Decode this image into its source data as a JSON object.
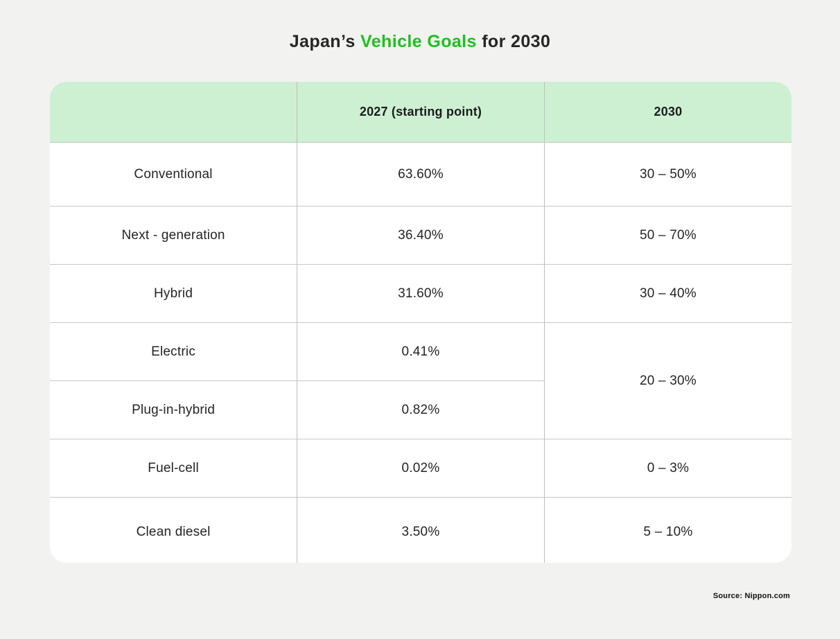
{
  "title": {
    "prefix": "Japan’s ",
    "highlight": "Vehicle Goals",
    "suffix": " for 2030"
  },
  "table": {
    "header": {
      "col_category": "",
      "col_2027": "2027 (starting point)",
      "col_2030": "2030"
    },
    "rows": [
      {
        "category": "Conventional",
        "y2027": "63.60%",
        "y2030": "30 – 50%"
      },
      {
        "category": "Next - generation",
        "y2027": "36.40%",
        "y2030": "50 – 70%"
      },
      {
        "category": "Hybrid",
        "y2027": "31.60%",
        "y2030": "30 – 40%"
      },
      {
        "category": "Electric",
        "y2027": "0.41%",
        "y2030": "20 – 30%"
      },
      {
        "category": "Plug-in-hybrid",
        "y2027": "0.82%",
        "y2030": "20 – 30% (merged with Electric row)"
      },
      {
        "category": "Fuel-cell",
        "y2027": "0.02%",
        "y2030": "0 – 3%"
      },
      {
        "category": "Clean diesel",
        "y2027": "3.50%",
        "y2030": "5 – 10%"
      }
    ]
  },
  "source": "Source: Nippon.com",
  "colors": {
    "page_background": "#f2f2f1",
    "card_background": "#ffffff",
    "header_background": "#cdf0d2",
    "accent_green": "#1bc21b",
    "grid_line": "#c6c6c6",
    "text": "#242424"
  },
  "chart_data": {
    "type": "table",
    "title": "Japan’s Vehicle Goals for 2030",
    "columns": [
      "",
      "2027 (starting point)",
      "2030"
    ],
    "rows": [
      [
        "Conventional",
        "63.60%",
        "30 – 50%"
      ],
      [
        "Next - generation",
        "36.40%",
        "50 – 70%"
      ],
      [
        "Hybrid",
        "31.60%",
        "30 – 40%"
      ],
      [
        "Electric",
        "0.41%",
        "20 – 30%"
      ],
      [
        "Plug-in-hybrid",
        "0.82%",
        "20 – 30%"
      ],
      [
        "Fuel-cell",
        "0.02%",
        "0 – 3%"
      ],
      [
        "Clean diesel",
        "3.50%",
        "5 – 10%"
      ]
    ],
    "values_2027_percent": [
      63.6,
      36.4,
      31.6,
      0.41,
      0.82,
      0.02,
      3.5
    ],
    "ranges_2030_percent": [
      [
        30,
        50
      ],
      [
        50,
        70
      ],
      [
        30,
        40
      ],
      [
        20,
        30
      ],
      [
        20,
        30
      ],
      [
        0,
        3
      ],
      [
        5,
        10
      ]
    ],
    "merged_cells": [
      {
        "column": "2030",
        "value": "20 – 30%",
        "spans_rows": [
          "Electric",
          "Plug-in-hybrid"
        ]
      }
    ],
    "source": "Source: Nippon.com"
  }
}
